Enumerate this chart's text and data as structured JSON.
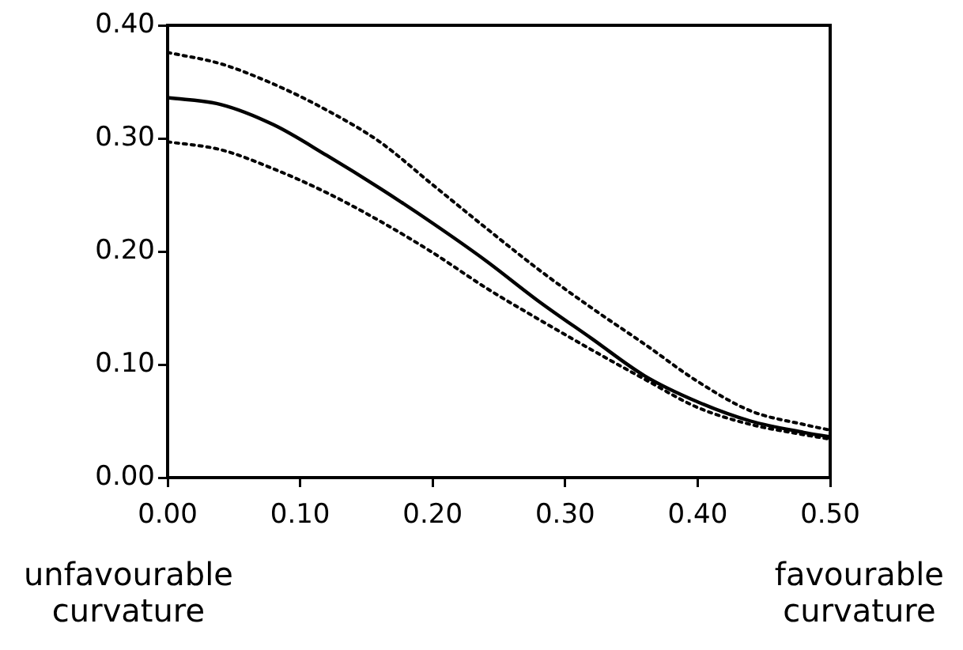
{
  "chart_data": {
    "type": "line",
    "x": [
      0,
      0.04,
      0.08,
      0.12,
      0.16,
      0.2,
      0.24,
      0.28,
      0.32,
      0.36,
      0.4,
      0.44,
      0.48,
      0.5
    ],
    "series": [
      {
        "color": "#000000",
        "line_style": "solid",
        "values": [
          0.336,
          0.33,
          0.312,
          0.285,
          0.256,
          0.225,
          0.192,
          0.156,
          0.123,
          0.09,
          0.067,
          0.05,
          0.04,
          0.036
        ]
      },
      {
        "color": "#000000",
        "line_style": "dotted",
        "values": [
          0.376,
          0.366,
          0.348,
          0.325,
          0.297,
          0.259,
          0.221,
          0.184,
          0.15,
          0.118,
          0.085,
          0.059,
          0.047,
          0.042
        ]
      },
      {
        "color": "#000000",
        "line_style": "dotted",
        "values": [
          0.297,
          0.29,
          0.273,
          0.252,
          0.227,
          0.199,
          0.168,
          0.14,
          0.113,
          0.087,
          0.062,
          0.047,
          0.038,
          0.034
        ]
      }
    ],
    "xlim": [
      0,
      0.5
    ],
    "xticks": [
      {
        "value": 0,
        "label": "0.00"
      },
      {
        "value": 0.1,
        "label": "0.10"
      },
      {
        "value": 0.2,
        "label": "0.20"
      },
      {
        "value": 0.3,
        "label": "0.30"
      },
      {
        "value": 0.4,
        "label": "0.40"
      },
      {
        "value": 0.5,
        "label": "0.50"
      }
    ],
    "ylim": [
      0,
      0.4
    ],
    "yticks": [
      {
        "value": 0,
        "label": "0.00"
      },
      {
        "value": 0.1,
        "label": "0.10"
      },
      {
        "value": 0.2,
        "label": "0.20"
      },
      {
        "value": 0.3,
        "label": "0.30"
      },
      {
        "value": 0.4,
        "label": "0.40"
      }
    ],
    "annotations": [
      "unfavourable\ncurvature",
      "favourable\ncurvature"
    ],
    "grid": false,
    "legend": false,
    "marker": "none"
  }
}
